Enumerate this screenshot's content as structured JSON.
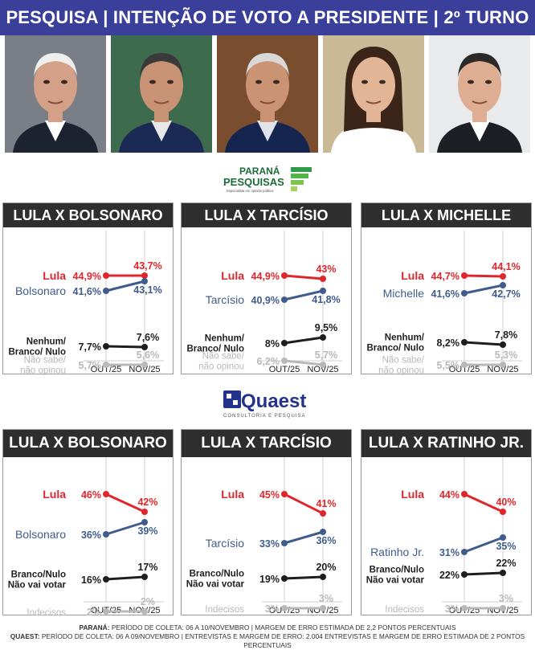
{
  "banner": {
    "title": "PESQUISA | INTENÇÃO DE VOTO A PRESIDENTE | 2º TURNO"
  },
  "colors": {
    "red": "#e0262b",
    "blue": "#3f5c8c",
    "black": "#1e1e1e",
    "gray": "#b8b8b8",
    "banner": "#3a3f9a"
  },
  "logos": {
    "parana": {
      "line1": "PARANÁ",
      "line2": "PESQUISAS",
      "tagline": "Especialista em opinião pública"
    },
    "quaest": {
      "name": "Quaest",
      "tagline": "CONSULTORIA E PESQUISA"
    }
  },
  "chart_data": [
    {
      "type": "line",
      "title": "LULA X BOLSONARO",
      "x": [
        "OUT/25",
        "NOV/25"
      ],
      "series": [
        {
          "name": "Lula",
          "values": [
            44.9,
            43.7
          ],
          "labels": [
            "44,9%",
            "43,7%"
          ]
        },
        {
          "name": "Bolsonaro",
          "values": [
            41.6,
            43.1
          ],
          "labels": [
            "41,6%",
            "43,1%"
          ]
        },
        {
          "name": "Nenhum/ Branco/ Nulo",
          "values": [
            7.7,
            7.6
          ],
          "labels": [
            "7,7%",
            "7,6%"
          ]
        },
        {
          "name": "Não sabe/ não opinou",
          "values": [
            5.7,
            5.6
          ],
          "labels": [
            "5,7%",
            "5,6%"
          ]
        }
      ]
    },
    {
      "type": "line",
      "title": "LULA X TARCÍSIO",
      "x": [
        "OUT/25",
        "NOV/25"
      ],
      "series": [
        {
          "name": "Lula",
          "values": [
            44.9,
            43
          ],
          "labels": [
            "44,9%",
            "43%"
          ]
        },
        {
          "name": "Tarcísio",
          "values": [
            40.9,
            41.8
          ],
          "labels": [
            "40,9%",
            "41,8%"
          ]
        },
        {
          "name": "Nenhum/ Branco/ Nulo",
          "values": [
            8,
            9.5
          ],
          "labels": [
            "8%",
            "9,5%"
          ]
        },
        {
          "name": "Não sabe/ não opinou",
          "values": [
            6.2,
            5.7
          ],
          "labels": [
            "6,2%",
            "5,7%"
          ]
        }
      ]
    },
    {
      "type": "line",
      "title": "LULA X MICHELLE",
      "x": [
        "OUT/25",
        "NOV/25"
      ],
      "series": [
        {
          "name": "Lula",
          "values": [
            44.7,
            44.1
          ],
          "labels": [
            "44,7%",
            "44,1%"
          ]
        },
        {
          "name": "Michelle",
          "values": [
            41.6,
            42.7
          ],
          "labels": [
            "41,6%",
            "42,7%"
          ]
        },
        {
          "name": "Nenhum/ Branco/ Nulo",
          "values": [
            8.2,
            7.8
          ],
          "labels": [
            "8,2%",
            "7,8%"
          ]
        },
        {
          "name": "Não sabe/ não opinou",
          "values": [
            5.5,
            5.3
          ],
          "labels": [
            "5,5%",
            "5,3%"
          ]
        }
      ]
    },
    {
      "type": "line",
      "title": "LULA X BOLSONARO",
      "x": [
        "OUT/25",
        "NOV/25"
      ],
      "series": [
        {
          "name": "Lula",
          "values": [
            46,
            42
          ],
          "labels": [
            "46%",
            "42%"
          ]
        },
        {
          "name": "Bolsonaro",
          "values": [
            36,
            39
          ],
          "labels": [
            "36%",
            "39%"
          ]
        },
        {
          "name": "Branco/Nulo Não vai votar",
          "values": [
            16,
            17
          ],
          "labels": [
            "16%",
            "17%"
          ]
        },
        {
          "name": "Indecisos",
          "values": [
            2,
            2
          ],
          "labels": [
            "2%",
            "2%"
          ]
        }
      ]
    },
    {
      "type": "line",
      "title": "LULA X TARCÍSIO",
      "x": [
        "OUT/25",
        "NOV/25"
      ],
      "series": [
        {
          "name": "Lula",
          "values": [
            45,
            41
          ],
          "labels": [
            "45%",
            "41%"
          ]
        },
        {
          "name": "Tarcísio",
          "values": [
            33,
            36
          ],
          "labels": [
            "33%",
            "36%"
          ]
        },
        {
          "name": "Branco/Nulo Não vai votar",
          "values": [
            19,
            20
          ],
          "labels": [
            "19%",
            "20%"
          ]
        },
        {
          "name": "Indecisos",
          "values": [
            3,
            3
          ],
          "labels": [
            "3%",
            "3%"
          ]
        }
      ]
    },
    {
      "type": "line",
      "title": "LULA X RATINHO JR.",
      "x": [
        "OUT/25",
        "NOV/25"
      ],
      "series": [
        {
          "name": "Lula",
          "values": [
            44,
            40
          ],
          "labels": [
            "44%",
            "40%"
          ]
        },
        {
          "name": "Ratinho Jr.",
          "values": [
            31,
            35
          ],
          "labels": [
            "31%",
            "35%"
          ]
        },
        {
          "name": "Branco/Nulo Não vai votar",
          "values": [
            22,
            22
          ],
          "labels": [
            "22%",
            "22%"
          ]
        },
        {
          "name": "Indecisos",
          "values": [
            3,
            3
          ],
          "labels": [
            "3%",
            "3%"
          ]
        }
      ]
    }
  ],
  "footer": {
    "line1_label": "PARANÁ:",
    "line1_text": " PERÍODO DE COLETA: 06 A 10/NOVEMBRO | MARGEM DE ERRO ESTIMADA DE 2,2 PONTOS PERCENTUAIS",
    "line2_label": "QUAEST:",
    "line2_text": " PERÍODO DE COLETA: 06 A 09/NOVEMBRO | ENTREVISTAS E MARGEM DE ERRO: 2.004 ENTREVISTAS E MARGEM DE ERRO ESTIMADA DE 2 PONTOS PERCENTUAIS"
  }
}
